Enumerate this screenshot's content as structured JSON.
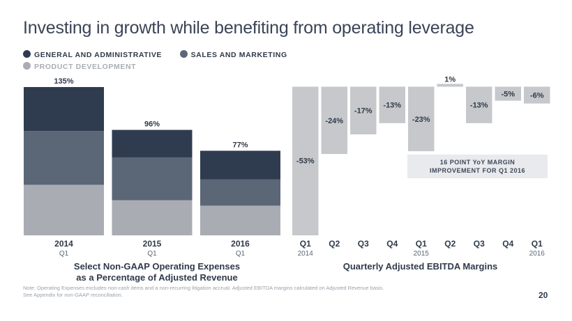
{
  "title": "Investing in growth while benefiting from operating leverage",
  "legend": [
    {
      "label": "GENERAL AND ADMINISTRATIVE",
      "color": "#2f3c50"
    },
    {
      "label": "SALES AND MARKETING",
      "color": "#5b6676"
    },
    {
      "label": "PRODUCT DEVELOPMENT",
      "color": "#a9adb3"
    }
  ],
  "chart_data": [
    {
      "type": "bar",
      "stacked": true,
      "title": "Select Non-GAAP Operating Expenses as a Percentage of Adjusted Revenue",
      "caption_lines": [
        "Select Non-GAAP Operating Expenses",
        "as a Percentage of Adjusted Revenue"
      ],
      "categories": [
        "2014",
        "2015",
        "2016"
      ],
      "sub_labels": [
        "Q1",
        "Q1",
        "Q1"
      ],
      "totals": [
        135,
        96,
        77
      ],
      "total_labels": [
        "135%",
        "96%",
        "77%"
      ],
      "series": [
        {
          "name": "PRODUCT DEVELOPMENT",
          "color": "#a9adb3",
          "values": [
            46,
            32,
            27
          ]
        },
        {
          "name": "SALES AND MARKETING",
          "color": "#5b6676",
          "values": [
            49,
            39,
            24
          ]
        },
        {
          "name": "GENERAL AND ADMINISTRATIVE",
          "color": "#2f3c50",
          "values": [
            40,
            25,
            26
          ]
        }
      ],
      "ylim": [
        0,
        135
      ]
    },
    {
      "type": "bar",
      "title": "Quarterly Adjusted EBITDA Margins",
      "caption_lines": [
        "Quarterly Adjusted EBITDA Margins"
      ],
      "categories": [
        "Q1",
        "Q2",
        "Q3",
        "Q4",
        "Q1",
        "Q2",
        "Q3",
        "Q4",
        "Q1"
      ],
      "year_labels": [
        "2014",
        "",
        "",
        "",
        "2015",
        "",
        "",
        "",
        "2016"
      ],
      "values": [
        -53,
        -24,
        -17,
        -13,
        -23,
        1,
        -13,
        -5,
        -6
      ],
      "value_labels": [
        "-53%",
        "-24%",
        "-17%",
        "-13%",
        "-23%",
        "1%",
        "-13%",
        "-5%",
        "-6%"
      ],
      "color": "#c6c8cb",
      "ylim": [
        -53,
        1
      ]
    }
  ],
  "callout": {
    "line1": "16 POINT YoY MARGIN",
    "line2": "IMPROVEMENT FOR Q1 2016"
  },
  "note": {
    "line1": "Note: Operating Expenses excludes non-cash items and a non-recurring litigation accrual. Adjusted EBITDA margins calculated on Adjusted Revenue basis.",
    "line2": "See Appendix for non-GAAP reconciliation."
  },
  "page_number": "20"
}
